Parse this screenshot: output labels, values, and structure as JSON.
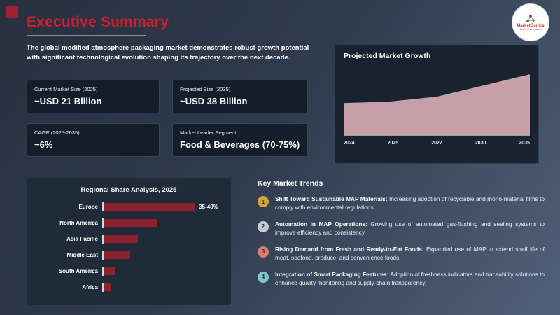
{
  "slide": {
    "title": "Executive Summary",
    "accent_color": "#d01f2f",
    "intro": "The global modified atmosphere packaging market demonstrates robust growth potential with significant technological evolution shaping its trajectory over the next decade.",
    "logo": {
      "brand": "MarketGenics",
      "tagline": "Ideas to Innovation"
    }
  },
  "stats": [
    {
      "label": "Current Market Size (2025)",
      "value": "~USD 21 Billion"
    },
    {
      "label": "Projected Size (2035)",
      "value": "~USD 38 Billion"
    },
    {
      "label": "CAGR (2025-2035)",
      "value": "~6%"
    },
    {
      "label": "Market Leader Segment",
      "value": "Food & Beverages (70-75%)"
    }
  ],
  "trends": {
    "title": "Key Market Trends",
    "items": [
      {
        "num": "1",
        "badge_color": "#d4a13c",
        "lead": "Shift Toward Sustainable MAP Materials:",
        "text": "Increasing adoption of recyclable and mono-material films to comply with environmental regulations."
      },
      {
        "num": "2",
        "badge_color": "#c2cad0",
        "lead": "Automation in MAP Operations:",
        "text": "Growing use of automated gas-flushing and sealing systems to improve efficiency and consistency."
      },
      {
        "num": "3",
        "badge_color": "#dd7c74",
        "lead": "Rising Demand from Fresh and Ready-to-Eat Foods:",
        "text": "Expanded use of MAP to extend shelf life of meat, seafood, produce, and convenience foods."
      },
      {
        "num": "4",
        "badge_color": "#82c3cc",
        "lead": "Integration of Smart Packaging Features:",
        "text": "Adoption of freshness indicators and traceability solutions to enhance quality monitoring and supply-chain transparency."
      }
    ]
  },
  "chart_data": [
    {
      "type": "area",
      "title": "Projected Market Growth",
      "x_labels": [
        "2024",
        "2025",
        "2027",
        "2030",
        "2035"
      ],
      "values": [
        20,
        21,
        24,
        31,
        38
      ],
      "ylim": [
        0,
        42
      ],
      "xlabel": "",
      "ylabel": "",
      "color": "#c79fa9",
      "legend": "none",
      "grid": false
    },
    {
      "type": "bar",
      "title": "Regional Share Analysis, 2025",
      "orientation": "horizontal",
      "categories": [
        "Europe",
        "North America",
        "Asia Pacific",
        "Middle East",
        "South America",
        "Africa"
      ],
      "values": [
        37.5,
        22,
        14,
        11,
        5,
        3
      ],
      "xlim": [
        0,
        48
      ],
      "value_label": "35-40%",
      "bar_color": "#8e2130",
      "grid": false
    }
  ]
}
